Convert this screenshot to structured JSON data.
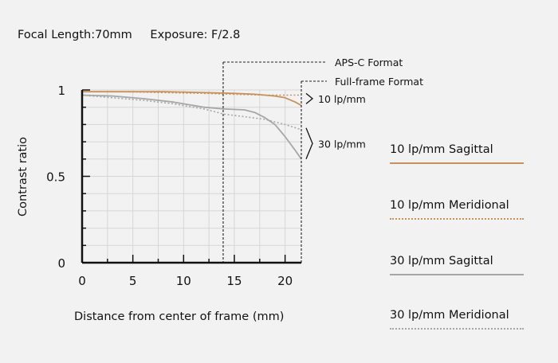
{
  "header": {
    "focal_length": "Focal Length:70mm",
    "exposure": "Exposure: F/2.8"
  },
  "colors": {
    "background": "#f2f2f2",
    "orange": "#c8915c",
    "gray": "#a6a6a6",
    "axis": "#111111",
    "grid": "#d6d6d6"
  },
  "chart_data": {
    "type": "line",
    "xlabel": "Distance from center of frame (mm)",
    "ylabel": "Contrast ratio",
    "xlim": [
      0,
      21.6
    ],
    "ylim": [
      0,
      1
    ],
    "x_ticks": [
      0,
      5,
      10,
      15,
      20
    ],
    "y_ticks": [
      {
        "value": 0,
        "label": "0"
      },
      {
        "value": 0.5,
        "label": "0.5"
      },
      {
        "value": 1,
        "label": "1"
      }
    ],
    "grid": true,
    "markers": [
      {
        "x": 13.9,
        "label": "APS-C Format"
      },
      {
        "x": 21.6,
        "label": "Full-frame Format"
      }
    ],
    "group_labels": [
      {
        "label": "10 lp/mm",
        "y_from": 0.92,
        "y_to": 0.98
      },
      {
        "label": "30 lp/mm",
        "y_from": 0.6,
        "y_to": 0.78
      }
    ],
    "series": [
      {
        "name": "10 lp/mm Sagittal",
        "color": "#c8915c",
        "dash": "solid",
        "x": [
          0,
          4,
          8,
          12,
          15,
          17,
          18,
          19,
          20,
          21,
          21.6
        ],
        "y": [
          0.99,
          0.99,
          0.99,
          0.985,
          0.98,
          0.975,
          0.97,
          0.965,
          0.955,
          0.93,
          0.91
        ]
      },
      {
        "name": "10 lp/mm Meridional",
        "color": "#c8915c",
        "dash": "dotted",
        "x": [
          0,
          4,
          8,
          12,
          15,
          18,
          20,
          21,
          21.6
        ],
        "y": [
          0.99,
          0.99,
          0.985,
          0.98,
          0.975,
          0.97,
          0.97,
          0.97,
          0.97
        ]
      },
      {
        "name": "30 lp/mm Sagittal",
        "color": "#a6a6a6",
        "dash": "solid",
        "x": [
          0,
          3,
          6,
          9,
          12,
          14,
          16,
          17,
          18,
          19,
          20,
          21,
          21.6
        ],
        "y": [
          0.97,
          0.965,
          0.95,
          0.93,
          0.9,
          0.89,
          0.885,
          0.87,
          0.84,
          0.8,
          0.73,
          0.65,
          0.6
        ]
      },
      {
        "name": "30 lp/mm Meridional",
        "color": "#a6a6a6",
        "dash": "dotted",
        "x": [
          0,
          3,
          6,
          9,
          12,
          14,
          16,
          18,
          20,
          21.6
        ],
        "y": [
          0.97,
          0.955,
          0.94,
          0.92,
          0.89,
          0.86,
          0.845,
          0.83,
          0.8,
          0.77
        ]
      }
    ]
  }
}
